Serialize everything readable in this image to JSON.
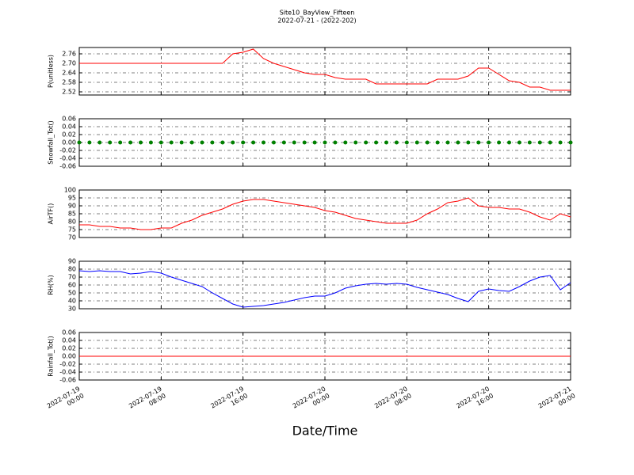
{
  "title": "Site10_BayView_Fifteen",
  "subtitle": "2022-07-21 - (2022-202)",
  "x_axis": {
    "label": "Date/Time",
    "xlim": [
      "2022-07-19 00:00",
      "2022-07-21 00:00"
    ],
    "xticks": [
      "2022-07-19 00:00",
      "2022-07-19 08:00",
      "2022-07-19 16:00",
      "2022-07-20 00:00",
      "2022-07-20 08:00",
      "2022-07-20 16:00",
      "2022-07-21 00:00"
    ],
    "grid": true
  },
  "x": [
    "2022-07-19 00:00",
    "2022-07-19 01:00",
    "2022-07-19 02:00",
    "2022-07-19 03:00",
    "2022-07-19 04:00",
    "2022-07-19 05:00",
    "2022-07-19 06:00",
    "2022-07-19 07:00",
    "2022-07-19 08:00",
    "2022-07-19 09:00",
    "2022-07-19 10:00",
    "2022-07-19 11:00",
    "2022-07-19 12:00",
    "2022-07-19 13:00",
    "2022-07-19 14:00",
    "2022-07-19 15:00",
    "2022-07-19 16:00",
    "2022-07-19 17:00",
    "2022-07-19 18:00",
    "2022-07-19 19:00",
    "2022-07-19 20:00",
    "2022-07-19 21:00",
    "2022-07-19 22:00",
    "2022-07-19 23:00",
    "2022-07-20 00:00",
    "2022-07-20 01:00",
    "2022-07-20 02:00",
    "2022-07-20 03:00",
    "2022-07-20 04:00",
    "2022-07-20 05:00",
    "2022-07-20 06:00",
    "2022-07-20 07:00",
    "2022-07-20 08:00",
    "2022-07-20 09:00",
    "2022-07-20 10:00",
    "2022-07-20 11:00",
    "2022-07-20 12:00",
    "2022-07-20 13:00",
    "2022-07-20 14:00",
    "2022-07-20 15:00",
    "2022-07-20 16:00",
    "2022-07-20 17:00",
    "2022-07-20 18:00",
    "2022-07-20 19:00",
    "2022-07-20 20:00",
    "2022-07-20 21:00",
    "2022-07-20 22:00",
    "2022-07-20 23:00",
    "2022-07-21 00:00"
  ],
  "chart_data": [
    {
      "type": "line",
      "ylabel": "P(unitless)",
      "ylim": [
        2.5,
        2.8
      ],
      "yticks": [
        2.52,
        2.58,
        2.64,
        {
          "value": 2.7,
          "label": "2.70"
        },
        2.76
      ],
      "grid": true,
      "series": [
        {
          "name": "P",
          "color": "#ff0000",
          "values": [
            2.7,
            2.7,
            2.7,
            2.7,
            2.7,
            2.7,
            2.7,
            2.7,
            2.7,
            2.7,
            2.7,
            2.7,
            2.7,
            2.7,
            2.7,
            2.76,
            2.77,
            2.79,
            2.73,
            2.7,
            2.68,
            2.66,
            2.64,
            2.63,
            2.63,
            2.61,
            2.6,
            2.6,
            2.6,
            2.57,
            2.57,
            2.57,
            2.57,
            2.57,
            2.57,
            2.6,
            2.6,
            2.6,
            2.62,
            2.67,
            2.67,
            2.63,
            2.59,
            2.58,
            2.55,
            2.55,
            2.53,
            2.53,
            2.53
          ]
        }
      ]
    },
    {
      "type": "scatter",
      "ylabel": "Snowfall_Tot()",
      "ylim": [
        -0.06,
        0.06
      ],
      "yticks": [
        -0.06,
        -0.04,
        -0.02,
        {
          "value": 0,
          "label": "0.00"
        },
        0.02,
        0.04,
        0.06
      ],
      "grid": true,
      "series": [
        {
          "name": "Snowfall_Tot",
          "color": "#008000",
          "values": [
            0,
            0,
            0,
            0,
            0,
            0,
            0,
            0,
            0,
            0,
            0,
            0,
            0,
            0,
            0,
            0,
            0,
            0,
            0,
            0,
            0,
            0,
            0,
            0,
            0,
            0,
            0,
            0,
            0,
            0,
            0,
            0,
            0,
            0,
            0,
            0,
            0,
            0,
            0,
            0,
            0,
            0,
            0,
            0,
            0,
            0,
            0,
            0,
            0
          ]
        }
      ]
    },
    {
      "type": "line",
      "ylabel": "AirTF()",
      "ylim": [
        70,
        100
      ],
      "yticks": [
        70,
        75,
        80,
        85,
        90,
        95,
        100
      ],
      "grid": true,
      "series": [
        {
          "name": "AirTF",
          "color": "#ff0000",
          "values": [
            78,
            78,
            77,
            77,
            76,
            76,
            75,
            75,
            76,
            76,
            79,
            81,
            84,
            86,
            88,
            91,
            93,
            94,
            94,
            93,
            92,
            91,
            90,
            89,
            87,
            86,
            84,
            82,
            81,
            80,
            79,
            79,
            79,
            81,
            85,
            88,
            92,
            93,
            95,
            90,
            89,
            89,
            88,
            88,
            86,
            83,
            81,
            85,
            83
          ]
        }
      ]
    },
    {
      "type": "line",
      "ylabel": "RH(%)",
      "ylim": [
        30,
        90
      ],
      "yticks": [
        30,
        40,
        50,
        60,
        70,
        80,
        90
      ],
      "grid": true,
      "series": [
        {
          "name": "RH",
          "color": "#0000ff",
          "values": [
            78,
            77,
            78,
            77,
            77,
            74,
            75,
            77,
            75,
            70,
            66,
            62,
            58,
            50,
            43,
            36,
            32,
            33,
            34,
            36,
            38,
            41,
            44,
            46,
            46,
            50,
            56,
            59,
            61,
            62,
            61,
            62,
            61,
            57,
            54,
            51,
            48,
            43,
            39,
            52,
            55,
            53,
            52,
            58,
            65,
            70,
            72,
            54,
            63
          ]
        }
      ]
    },
    {
      "type": "line",
      "ylabel": "Rainfall_Tot()",
      "ylim": [
        -0.06,
        0.06
      ],
      "yticks": [
        -0.06,
        -0.04,
        -0.02,
        {
          "value": 0,
          "label": "0.00"
        },
        0.02,
        0.04,
        0.06
      ],
      "grid": true,
      "series": [
        {
          "name": "Rainfall_Tot",
          "color": "#ff0000",
          "values": [
            0,
            0,
            0,
            0,
            0,
            0,
            0,
            0,
            0,
            0,
            0,
            0,
            0,
            0,
            0,
            0,
            0,
            0,
            0,
            0,
            0,
            0,
            0,
            0,
            0,
            0,
            0,
            0,
            0,
            0,
            0,
            0,
            0,
            0,
            0,
            0,
            0,
            0,
            0,
            0,
            0,
            0,
            0,
            0,
            0,
            0,
            0,
            0,
            0
          ]
        }
      ]
    }
  ]
}
